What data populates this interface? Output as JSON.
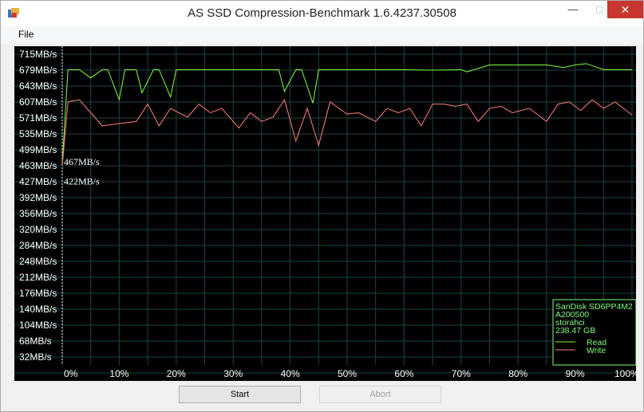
{
  "window": {
    "title": "AS SSD Compression-Benchmark 1.6.4237.30508"
  },
  "menu": {
    "file": "File"
  },
  "buttons": {
    "start": "Start",
    "abort": "Abort"
  },
  "colors": {
    "read": "#80ff40",
    "write": "#ff8080",
    "grid": "#1e4444",
    "axis_text": "#ffffff",
    "legend": "#80ff80"
  },
  "chart_data": {
    "type": "line",
    "x_axis_labels": [
      "0%",
      "10%",
      "20%",
      "30%",
      "40%",
      "50%",
      "60%",
      "70%",
      "80%",
      "90%",
      "100%"
    ],
    "y_axis_labels": [
      "715MB/s",
      "679MB/s",
      "643MB/s",
      "607MB/s",
      "571MB/s",
      "535MB/s",
      "499MB/s",
      "463MB/s",
      "427MB/s",
      "392MB/s",
      "356MB/s",
      "320MB/s",
      "284MB/s",
      "248MB/s",
      "212MB/s",
      "176MB/s",
      "140MB/s",
      "104MB/s",
      "68MB/s",
      "32MB/s"
    ],
    "ylim": [
      0,
      733
    ],
    "xlim": [
      0,
      100
    ],
    "grid": true,
    "legend_position": "bottom-right",
    "device_info": [
      "SanDisk SD6PP4M2",
      "A200500",
      "storahci",
      "238.47 GB"
    ],
    "annotations": [
      {
        "text": "467MB/s",
        "x": 0,
        "y": 467
      },
      {
        "text": "422MB/s",
        "x": 0,
        "y": 422
      }
    ],
    "series": [
      {
        "name": "Read",
        "x": [
          0,
          1,
          3,
          5,
          7,
          8,
          10,
          11,
          13,
          14,
          16,
          17,
          19,
          20,
          30,
          38,
          39,
          41,
          42,
          44,
          45,
          60,
          65,
          70,
          71,
          75,
          80,
          83,
          85,
          88,
          90,
          92,
          95,
          100
        ],
        "y": [
          462,
          679,
          679,
          660,
          679,
          679,
          610,
          679,
          679,
          626,
          679,
          679,
          616,
          679,
          679,
          679,
          629,
          679,
          679,
          602,
          679,
          679,
          678,
          679,
          674,
          690,
          690,
          690,
          690,
          684,
          690,
          693,
          679,
          679
        ]
      },
      {
        "name": "Write",
        "x": [
          0,
          1,
          3,
          5,
          7,
          10,
          13,
          15,
          17,
          19,
          22,
          24,
          26,
          28,
          31,
          33,
          35,
          37,
          39,
          41,
          43,
          45,
          47,
          50,
          52,
          55,
          57,
          59,
          61,
          63,
          65,
          67,
          69,
          71,
          73,
          75,
          77,
          79,
          82,
          85,
          87,
          89,
          91,
          93,
          95,
          97,
          99,
          100
        ],
        "y": [
          458,
          605,
          610,
          580,
          550,
          555,
          560,
          600,
          550,
          590,
          570,
          600,
          580,
          590,
          545,
          580,
          560,
          570,
          610,
          515,
          590,
          505,
          605,
          577,
          580,
          560,
          590,
          580,
          590,
          550,
          600,
          600,
          595,
          600,
          560,
          590,
          595,
          580,
          590,
          560,
          600,
          605,
          585,
          610,
          590,
          605,
          585,
          575
        ]
      }
    ]
  }
}
